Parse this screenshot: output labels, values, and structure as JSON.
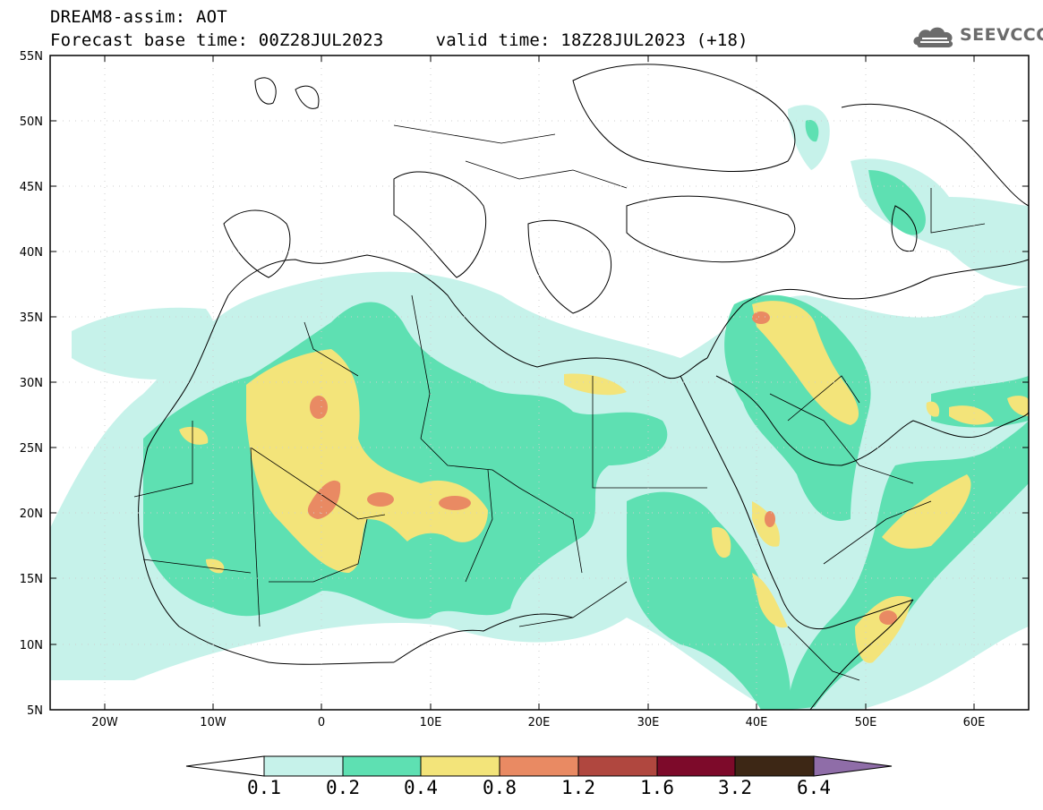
{
  "header": {
    "line1": "DREAM8-assim: AOT",
    "line2": "Forecast base time: 00Z28JUL2023     valid time: 18Z28JUL2023 (+18)"
  },
  "logo": {
    "text": "SEEVCCC",
    "icon": "cloud-icon"
  },
  "map": {
    "lon_range": [
      -25,
      65
    ],
    "lat_range": [
      5,
      55
    ],
    "lat_ticks": [
      "55N",
      "50N",
      "45N",
      "40N",
      "35N",
      "30N",
      "25N",
      "20N",
      "15N",
      "10N",
      "5N"
    ],
    "lon_ticks": [
      "20W",
      "10W",
      "0",
      "10E",
      "20E",
      "30E",
      "40E",
      "50E",
      "60E"
    ]
  },
  "colorbar": {
    "labels": [
      "0.1",
      "0.2",
      "0.4",
      "0.8",
      "1.2",
      "1.6",
      "3.2",
      "6.4"
    ],
    "colors": [
      "#c6f2ea",
      "#5ee0b2",
      "#f3e47a",
      "#e98a63",
      "#b0473f",
      "#7d0a2a",
      "#3d2715",
      "#8f6da8"
    ],
    "under_color": "#ffffff"
  }
}
